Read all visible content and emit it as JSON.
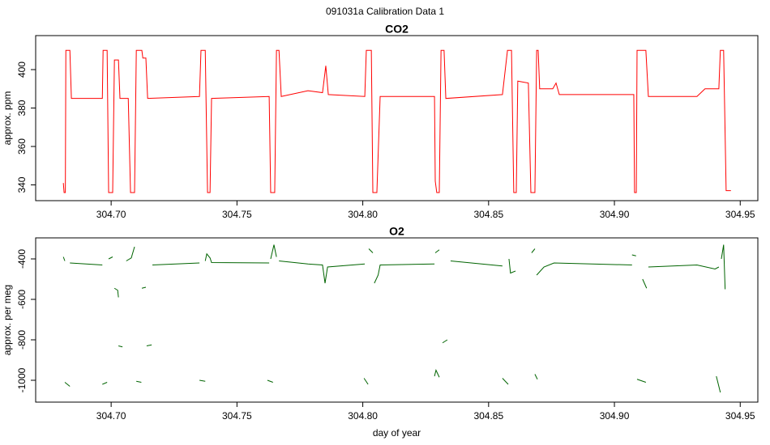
{
  "title": "091031a   Calibration Data 1",
  "chart_data": [
    {
      "type": "line",
      "title": "CO2",
      "ylabel": "approx. ppm",
      "xlim": [
        304.67,
        304.957
      ],
      "ylim": [
        331.8,
        417.7
      ],
      "xticks": [
        {
          "value": 304.7,
          "label": "304.70"
        },
        304.75,
        {
          "value": 304.8,
          "label": "304.80"
        },
        304.85,
        {
          "value": 304.9,
          "label": "304.90"
        },
        304.95
      ],
      "yticks": [
        340,
        360,
        380,
        400
      ],
      "x": [
        304.681,
        304.6813,
        304.6818,
        304.682,
        304.6836,
        304.6842,
        304.6965,
        304.6968,
        304.6984,
        304.699,
        304.7006,
        304.7013,
        304.7029,
        304.7035,
        304.7068,
        304.7077,
        304.7093,
        304.71,
        304.7122,
        304.7126,
        304.7138,
        304.7145,
        304.7351,
        304.7357,
        304.7374,
        304.7383,
        304.7393,
        304.7399,
        304.7628,
        304.7634,
        304.765,
        304.7657,
        304.7667,
        304.7676,
        304.7782,
        304.784,
        304.7853,
        304.7863,
        304.8008,
        304.8014,
        304.8034,
        304.804,
        304.8056,
        304.8069,
        304.8285,
        304.8288,
        304.8294,
        304.8304,
        304.8311,
        304.8323,
        304.833,
        304.8555,
        304.8575,
        304.8591,
        304.86,
        304.861,
        304.8616,
        304.8658,
        304.8668,
        304.8684,
        304.8691,
        304.8697,
        304.8703,
        304.8755,
        304.8768,
        304.8781,
        304.9077,
        304.908,
        304.9087,
        304.909,
        304.9125,
        304.9135,
        304.9328,
        304.936,
        304.9415,
        304.9421,
        304.9434,
        304.9444,
        304.9463
      ],
      "series": [
        {
          "color": "#ff0000",
          "values": [
            341,
            336,
            336,
            410,
            410,
            385,
            385,
            410,
            410,
            336,
            336,
            405,
            405,
            385,
            385,
            336,
            336,
            410,
            410,
            406,
            406,
            385,
            386,
            410,
            410,
            336,
            336,
            385,
            386,
            336,
            336,
            410,
            410,
            386,
            389,
            388,
            402,
            387,
            386,
            410,
            410,
            336,
            336,
            386,
            386,
            342,
            336,
            336,
            410,
            410,
            385,
            387,
            410,
            410,
            336,
            336,
            394,
            393,
            336,
            336,
            410,
            410,
            390,
            390,
            393,
            387,
            387,
            336,
            336,
            410,
            410,
            386,
            386,
            390,
            390,
            410,
            410,
            337,
            337
          ]
        }
      ]
    },
    {
      "type": "line",
      "title": "O2",
      "ylabel": "approx. per meg",
      "xlabel": "day of year",
      "xlim": [
        304.67,
        304.957
      ],
      "ylim": [
        -1108,
        -296
      ],
      "xticks": [
        {
          "value": 304.7,
          "label": "304.70"
        },
        304.75,
        {
          "value": 304.8,
          "label": "304.80"
        },
        304.85,
        {
          "value": 304.9,
          "label": "304.90"
        },
        304.95
      ],
      "yticks": [
        -1000,
        -800,
        -600,
        -400
      ],
      "x": [
        304.681,
        304.6816,
        null,
        304.6836,
        304.6965,
        null,
        304.6816,
        304.6836,
        null,
        304.6965,
        304.6984,
        null,
        304.699,
        304.7006,
        null,
        304.7013,
        304.7026,
        304.7029,
        null,
        304.7029,
        304.7045,
        null,
        304.706,
        304.708,
        304.7093,
        null,
        304.71,
        304.712,
        null,
        304.7122,
        304.7138,
        null,
        304.7141,
        304.7161,
        null,
        304.7164,
        304.7351,
        null,
        304.7351,
        304.7374,
        null,
        304.7374,
        304.738,
        304.7393,
        304.7399,
        304.7628,
        null,
        304.7621,
        304.7643,
        null,
        304.7634,
        304.7647,
        304.7657,
        null,
        304.7667,
        304.7782,
        304.784,
        304.785,
        304.786,
        304.8008,
        null,
        304.8005,
        304.8021,
        null,
        304.8024,
        304.804,
        null,
        304.8046,
        304.8061,
        304.8069,
        304.8285,
        null,
        304.8285,
        304.8291,
        304.8304,
        null,
        304.8288,
        304.8304,
        null,
        304.8317,
        304.8336,
        null,
        304.8349,
        304.8555,
        null,
        304.8555,
        304.8578,
        null,
        304.8581,
        304.8587,
        304.8607,
        null,
        304.8671,
        304.8684,
        null,
        304.8684,
        304.8694,
        null,
        304.8691,
        304.872,
        304.876,
        304.907,
        null,
        304.907,
        304.9086,
        null,
        304.909,
        304.9125,
        null,
        304.9112,
        304.9128,
        null,
        304.9135,
        304.9328,
        304.94,
        304.9415,
        null,
        304.9405,
        304.9421,
        null,
        304.9425,
        304.9434,
        304.944
      ],
      "series": [
        {
          "color": "#006400",
          "values": [
            -390,
            -410,
            null,
            -420,
            -430,
            null,
            -1010,
            -1030,
            null,
            -1020,
            -1010,
            null,
            -400,
            -390,
            null,
            -545,
            -555,
            -590,
            null,
            -830,
            -835,
            null,
            -410,
            -395,
            -340,
            null,
            -1005,
            -1010,
            null,
            -545,
            -540,
            null,
            -830,
            -825,
            null,
            -430,
            -420,
            null,
            -1000,
            -1005,
            null,
            -410,
            -375,
            -395,
            -418,
            -420,
            null,
            -1000,
            -1010,
            null,
            -400,
            -330,
            -390,
            null,
            -410,
            -425,
            -430,
            -520,
            -440,
            -425,
            null,
            -990,
            -1020,
            null,
            -350,
            -370,
            null,
            -520,
            -480,
            -430,
            -425,
            null,
            -980,
            -950,
            -985,
            null,
            -370,
            -355,
            null,
            -815,
            -800,
            null,
            -410,
            -435,
            null,
            -990,
            -1020,
            null,
            -400,
            -470,
            -460,
            null,
            -370,
            -350,
            null,
            -970,
            -995,
            null,
            -480,
            -440,
            -420,
            -430,
            null,
            -380,
            -385,
            null,
            -995,
            -1010,
            null,
            -500,
            -545,
            null,
            -440,
            -430,
            -450,
            -440,
            null,
            -980,
            -1060,
            null,
            -400,
            -330,
            -550
          ]
        }
      ]
    }
  ]
}
